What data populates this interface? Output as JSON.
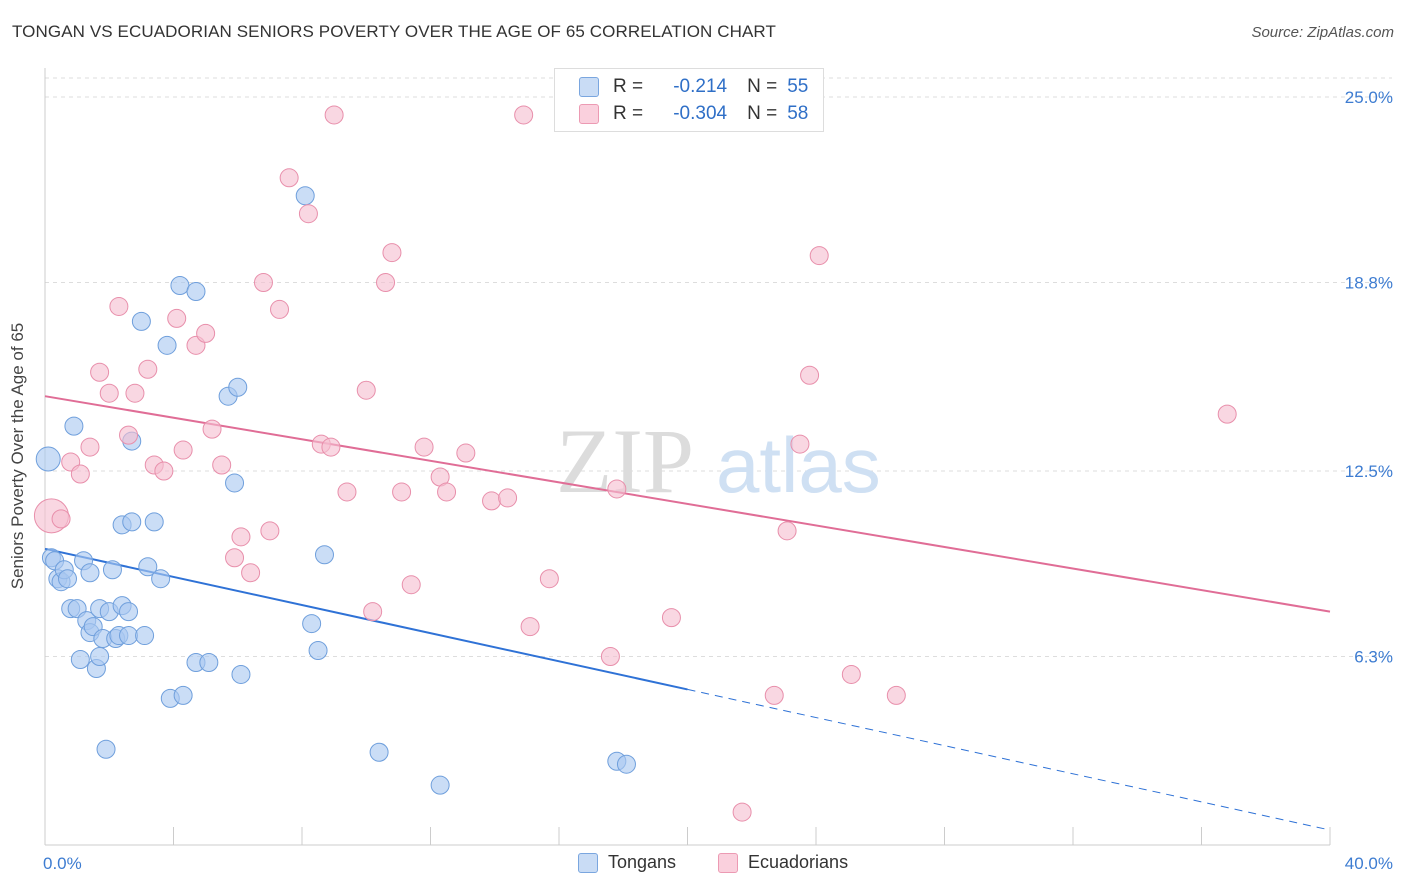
{
  "title": "TONGAN VS ECUADORIAN SENIORS POVERTY OVER THE AGE OF 65 CORRELATION CHART",
  "source": "Source: ZipAtlas.com",
  "watermark": {
    "zip": "ZIP",
    "atlas": "atlas"
  },
  "colors": {
    "tongan_fill": "#a9c8f0",
    "tongan_stroke": "#6f9fdc",
    "tongan_line": "#2f72d6",
    "ecuadorian_fill": "#f6bfd0",
    "ecuadorian_stroke": "#e88fab",
    "ecuadorian_line": "#e06d96",
    "axis_label": "#3d7cd1",
    "grid": "#dddddd"
  },
  "legend_stats": {
    "rows": [
      {
        "r_label": "R =",
        "r_value": "-0.214",
        "n_label": "N =",
        "n_value": "55"
      },
      {
        "r_label": "R =",
        "r_value": "-0.304",
        "n_label": "N =",
        "n_value": "58"
      }
    ]
  },
  "chart_data": {
    "type": "scatter",
    "title": "TONGAN VS ECUADORIAN SENIORS POVERTY OVER THE AGE OF 65 CORRELATION CHART",
    "xlabel": "",
    "ylabel": "Seniors Poverty Over the Age of 65",
    "xlim": [
      0,
      40
    ],
    "ylim": [
      0,
      25.0
    ],
    "x_tick_labels": [
      "0.0%",
      "40.0%"
    ],
    "y_ticks": [
      6.3,
      12.5,
      18.8,
      25.0
    ],
    "y_tick_labels": [
      "6.3%",
      "12.5%",
      "18.8%",
      "25.0%"
    ],
    "grid": true,
    "legend_position": "bottom",
    "series": [
      {
        "name": "Tongans",
        "trend": {
          "x0": 0.0,
          "y0": 9.9,
          "x1": 20.0,
          "y1": 5.2,
          "dashed_to_x": 40.0,
          "dashed_to_y": 0.5
        },
        "points": [
          [
            0.1,
            12.9
          ],
          [
            0.2,
            9.6
          ],
          [
            0.3,
            9.5
          ],
          [
            0.4,
            8.9
          ],
          [
            0.5,
            8.8
          ],
          [
            0.6,
            9.2
          ],
          [
            0.7,
            8.9
          ],
          [
            0.8,
            7.9
          ],
          [
            0.9,
            14.0
          ],
          [
            1.0,
            7.9
          ],
          [
            1.1,
            6.2
          ],
          [
            1.2,
            9.5
          ],
          [
            1.3,
            7.5
          ],
          [
            1.4,
            9.1
          ],
          [
            1.4,
            7.1
          ],
          [
            1.5,
            7.3
          ],
          [
            1.6,
            5.9
          ],
          [
            1.7,
            6.3
          ],
          [
            1.7,
            7.9
          ],
          [
            1.8,
            6.9
          ],
          [
            1.9,
            3.2
          ],
          [
            2.0,
            7.8
          ],
          [
            2.1,
            9.2
          ],
          [
            2.2,
            6.9
          ],
          [
            2.3,
            7.0
          ],
          [
            2.4,
            8.0
          ],
          [
            2.4,
            10.7
          ],
          [
            2.6,
            7.0
          ],
          [
            2.6,
            7.8
          ],
          [
            2.7,
            13.5
          ],
          [
            2.7,
            10.8
          ],
          [
            3.0,
            17.5
          ],
          [
            3.1,
            7.0
          ],
          [
            3.2,
            9.3
          ],
          [
            3.4,
            10.8
          ],
          [
            3.6,
            8.9
          ],
          [
            3.8,
            16.7
          ],
          [
            3.9,
            4.9
          ],
          [
            4.3,
            5.0
          ],
          [
            4.2,
            18.7
          ],
          [
            4.7,
            18.5
          ],
          [
            4.7,
            6.1
          ],
          [
            5.1,
            6.1
          ],
          [
            5.7,
            15.0
          ],
          [
            5.9,
            12.1
          ],
          [
            6.0,
            15.3
          ],
          [
            6.1,
            5.7
          ],
          [
            8.1,
            21.7
          ],
          [
            8.3,
            7.4
          ],
          [
            8.5,
            6.5
          ],
          [
            8.7,
            9.7
          ],
          [
            10.4,
            3.1
          ],
          [
            12.3,
            2.0
          ],
          [
            17.8,
            2.8
          ],
          [
            18.1,
            2.7
          ]
        ]
      },
      {
        "name": "Ecuadorians",
        "trend": {
          "x0": 0.0,
          "y0": 15.0,
          "x1": 40.0,
          "y1": 7.8
        },
        "points": [
          [
            0.2,
            11.0
          ],
          [
            0.5,
            10.9
          ],
          [
            0.8,
            12.8
          ],
          [
            1.1,
            12.4
          ],
          [
            1.4,
            13.3
          ],
          [
            1.7,
            15.8
          ],
          [
            2.0,
            15.1
          ],
          [
            2.3,
            18.0
          ],
          [
            2.6,
            13.7
          ],
          [
            2.8,
            15.1
          ],
          [
            3.2,
            15.9
          ],
          [
            3.4,
            12.7
          ],
          [
            3.7,
            12.5
          ],
          [
            4.1,
            17.6
          ],
          [
            4.3,
            13.2
          ],
          [
            4.7,
            16.7
          ],
          [
            5.0,
            17.1
          ],
          [
            5.2,
            13.9
          ],
          [
            5.5,
            12.7
          ],
          [
            5.9,
            9.6
          ],
          [
            6.1,
            10.3
          ],
          [
            6.4,
            9.1
          ],
          [
            6.8,
            18.8
          ],
          [
            7.0,
            10.5
          ],
          [
            7.3,
            17.9
          ],
          [
            7.6,
            22.3
          ],
          [
            8.2,
            21.1
          ],
          [
            8.6,
            13.4
          ],
          [
            8.9,
            13.3
          ],
          [
            9.0,
            24.4
          ],
          [
            9.4,
            11.8
          ],
          [
            10.0,
            15.2
          ],
          [
            10.2,
            7.8
          ],
          [
            10.6,
            18.8
          ],
          [
            10.8,
            19.8
          ],
          [
            11.1,
            11.8
          ],
          [
            11.4,
            8.7
          ],
          [
            11.8,
            13.3
          ],
          [
            12.3,
            12.3
          ],
          [
            12.5,
            11.8
          ],
          [
            13.1,
            13.1
          ],
          [
            13.9,
            11.5
          ],
          [
            14.4,
            11.6
          ],
          [
            14.9,
            24.4
          ],
          [
            15.1,
            7.3
          ],
          [
            15.7,
            8.9
          ],
          [
            17.6,
            6.3
          ],
          [
            17.8,
            11.9
          ],
          [
            19.5,
            7.6
          ],
          [
            21.7,
            1.1
          ],
          [
            22.7,
            5.0
          ],
          [
            23.1,
            10.5
          ],
          [
            23.5,
            13.4
          ],
          [
            23.8,
            15.7
          ],
          [
            24.1,
            19.7
          ],
          [
            25.1,
            5.7
          ],
          [
            26.5,
            5.0
          ],
          [
            36.8,
            14.4
          ]
        ]
      }
    ]
  }
}
